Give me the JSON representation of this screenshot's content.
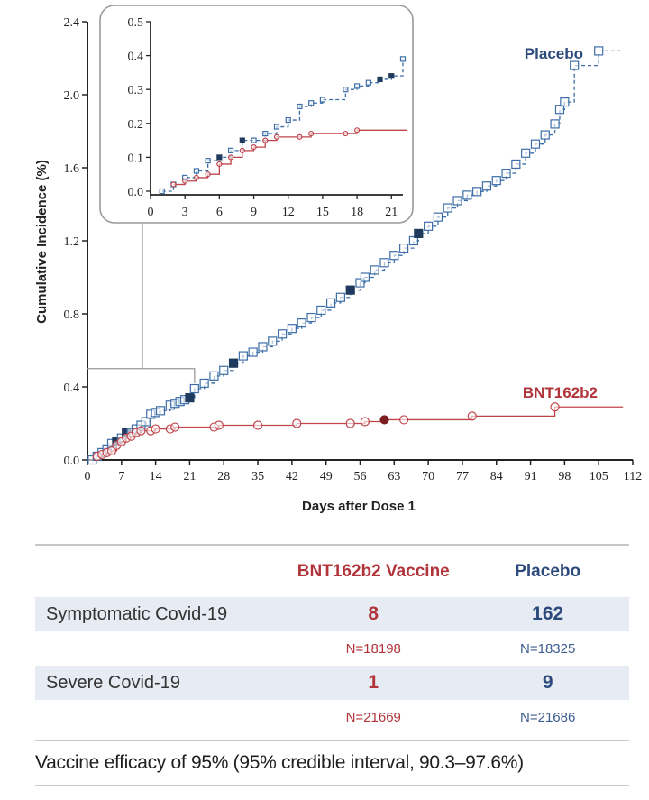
{
  "chart_data": {
    "type": "line",
    "subtype": "step-cumulative-incidence",
    "xlabel": "Days after Dose 1",
    "ylabel": "Cumulative Incidence (%)",
    "xlim": [
      0,
      112
    ],
    "ylim": [
      0,
      2.4
    ],
    "xticks": [
      0,
      7,
      14,
      21,
      28,
      35,
      42,
      49,
      56,
      63,
      70,
      77,
      84,
      91,
      98,
      105,
      112
    ],
    "yticks": [
      "0.0",
      "0.4",
      "0.8",
      "1.2",
      "1.6",
      "2.0",
      "2.4"
    ],
    "legend": "inline labels",
    "colors": {
      "placebo": "#3d6ea8",
      "placebo_dark": "#1f3a5c",
      "vaccine": "#c0454b",
      "vaccine_dark": "#7a1e22",
      "axis": "#222222",
      "inset_border": "#9a9a9a"
    },
    "series": [
      {
        "name": "Placebo",
        "label": "Placebo",
        "points": [
          [
            1,
            0.0
          ],
          [
            2,
            0.02
          ],
          [
            3,
            0.04
          ],
          [
            4,
            0.06
          ],
          [
            5,
            0.09
          ],
          [
            6,
            0.1
          ],
          [
            7,
            0.12
          ],
          [
            8,
            0.15
          ],
          [
            9,
            0.15
          ],
          [
            10,
            0.17
          ],
          [
            11,
            0.19
          ],
          [
            12,
            0.21
          ],
          [
            13,
            0.25
          ],
          [
            14,
            0.26
          ],
          [
            15,
            0.27
          ],
          [
            17,
            0.3
          ],
          [
            18,
            0.31
          ],
          [
            19,
            0.32
          ],
          [
            20,
            0.33
          ],
          [
            21,
            0.34
          ],
          [
            22,
            0.39
          ],
          [
            24,
            0.42
          ],
          [
            26,
            0.46
          ],
          [
            28,
            0.49
          ],
          [
            30,
            0.53
          ],
          [
            32,
            0.57
          ],
          [
            34,
            0.59
          ],
          [
            36,
            0.62
          ],
          [
            38,
            0.65
          ],
          [
            40,
            0.69
          ],
          [
            42,
            0.72
          ],
          [
            44,
            0.75
          ],
          [
            46,
            0.78
          ],
          [
            48,
            0.82
          ],
          [
            50,
            0.86
          ],
          [
            52,
            0.89
          ],
          [
            54,
            0.93
          ],
          [
            56,
            0.97
          ],
          [
            57,
            1.0
          ],
          [
            59,
            1.04
          ],
          [
            61,
            1.08
          ],
          [
            63,
            1.12
          ],
          [
            65,
            1.16
          ],
          [
            67,
            1.2
          ],
          [
            68,
            1.24
          ],
          [
            70,
            1.28
          ],
          [
            72,
            1.33
          ],
          [
            74,
            1.38
          ],
          [
            76,
            1.42
          ],
          [
            78,
            1.45
          ],
          [
            80,
            1.47
          ],
          [
            82,
            1.5
          ],
          [
            84,
            1.53
          ],
          [
            86,
            1.57
          ],
          [
            88,
            1.62
          ],
          [
            90,
            1.68
          ],
          [
            92,
            1.73
          ],
          [
            94,
            1.78
          ],
          [
            96,
            1.84
          ],
          [
            97,
            1.92
          ],
          [
            98,
            1.96
          ],
          [
            100,
            2.16
          ],
          [
            105,
            2.24
          ]
        ],
        "end_x": 110
      },
      {
        "name": "BNT162b2",
        "label": "BNT162b2",
        "points": [
          [
            2,
            0.02
          ],
          [
            3,
            0.03
          ],
          [
            4,
            0.04
          ],
          [
            5,
            0.05
          ],
          [
            6,
            0.08
          ],
          [
            7,
            0.1
          ],
          [
            8,
            0.12
          ],
          [
            9,
            0.13
          ],
          [
            10,
            0.15
          ],
          [
            11,
            0.16
          ],
          [
            13,
            0.16
          ],
          [
            14,
            0.17
          ],
          [
            17,
            0.17
          ],
          [
            18,
            0.18
          ],
          [
            26,
            0.18
          ],
          [
            27,
            0.19
          ],
          [
            35,
            0.19
          ],
          [
            43,
            0.2
          ],
          [
            54,
            0.2
          ],
          [
            57,
            0.21
          ],
          [
            61,
            0.22
          ],
          [
            65,
            0.22
          ],
          [
            79,
            0.24
          ],
          [
            96,
            0.29
          ]
        ],
        "end_x": 110
      }
    ],
    "inset": {
      "xlim": [
        0,
        22
      ],
      "ylim": [
        0,
        0.5
      ],
      "xticks": [
        0,
        3,
        6,
        9,
        12,
        15,
        18,
        21
      ],
      "yticks": [
        "0.0",
        "0.1",
        "0.2",
        "0.3",
        "0.4",
        "0.5"
      ],
      "zoom_region_days": [
        0,
        22
      ],
      "zoom_region_incidence": [
        0,
        0.5
      ]
    }
  },
  "table": {
    "header": {
      "vaccine": "BNT162b2 Vaccine",
      "placebo": "Placebo"
    },
    "rows": [
      {
        "label": "Symptomatic Covid-19",
        "vaccine": "8",
        "placebo": "162",
        "vaccine_n": "N=18198",
        "placebo_n": "N=18325"
      },
      {
        "label": "Severe Covid-19",
        "vaccine": "1",
        "placebo": "9",
        "vaccine_n": "N=21669",
        "placebo_n": "N=21686"
      }
    ],
    "efficacy": "Vaccine efficacy of 95% (95% credible interval, 90.3–97.6%)"
  }
}
